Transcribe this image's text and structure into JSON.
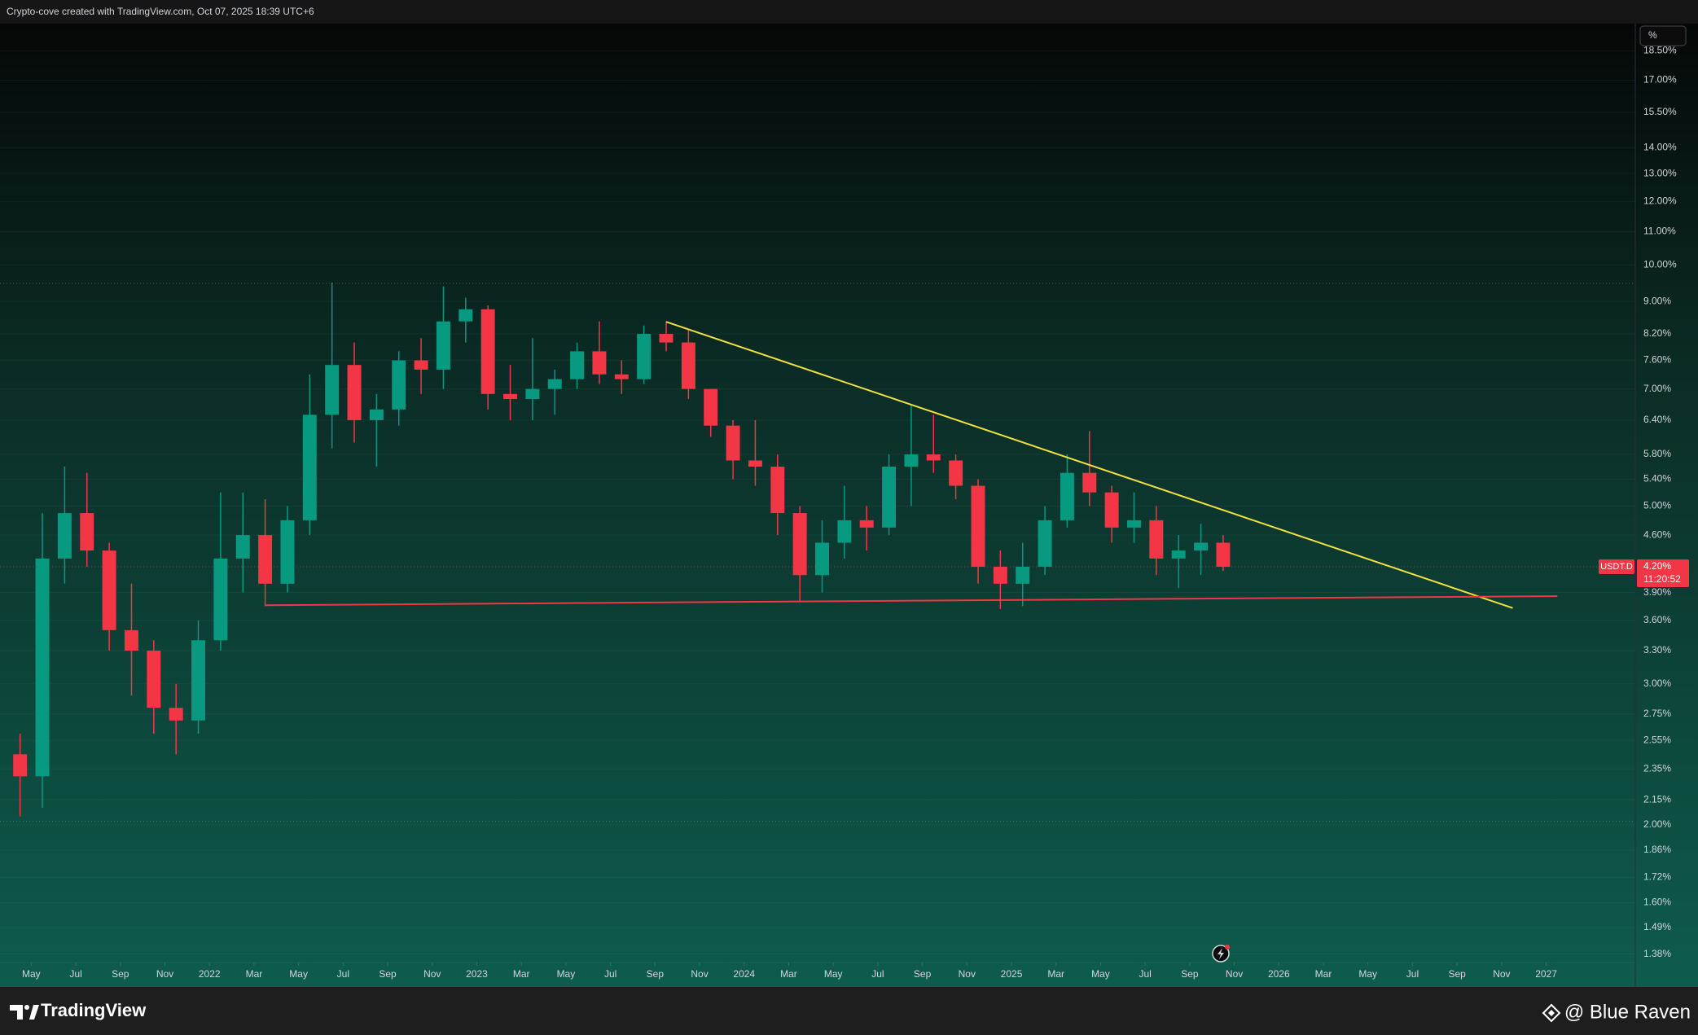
{
  "header": {
    "caption": "Crypto-cove created with TradingView.com, Oct 07, 2025 18:39 UTC+6"
  },
  "footer": {
    "brand": "TradingView",
    "author": "@ Blue Raven"
  },
  "toolbar": {
    "scale_button": "%"
  },
  "chart_data": {
    "type": "candlestick",
    "log_scale": true,
    "grid": true,
    "up_color": "#089981",
    "down_color": "#f23645",
    "x": [
      "2021-04",
      "2021-05",
      "2021-06",
      "2021-07",
      "2021-08",
      "2021-09",
      "2021-10",
      "2021-11",
      "2021-12",
      "2022-01",
      "2022-02",
      "2022-03",
      "2022-04",
      "2022-05",
      "2022-06",
      "2022-07",
      "2022-08",
      "2022-09",
      "2022-10",
      "2022-11",
      "2022-12",
      "2023-01",
      "2023-02",
      "2023-03",
      "2023-04",
      "2023-05",
      "2023-06",
      "2023-07",
      "2023-08",
      "2023-09",
      "2023-10",
      "2023-11",
      "2023-12",
      "2024-01",
      "2024-02",
      "2024-03",
      "2024-04",
      "2024-05",
      "2024-06",
      "2024-07",
      "2024-08",
      "2024-09",
      "2024-10",
      "2024-11",
      "2024-12",
      "2025-01",
      "2025-02",
      "2025-03",
      "2025-04",
      "2025-05",
      "2025-06",
      "2025-07",
      "2025-08",
      "2025-09",
      "2025-10"
    ],
    "open": [
      2.45,
      2.3,
      4.3,
      4.9,
      4.4,
      3.5,
      3.3,
      2.8,
      2.7,
      3.4,
      4.3,
      4.6,
      4.0,
      4.8,
      6.5,
      7.5,
      6.4,
      6.6,
      7.6,
      7.4,
      8.5,
      8.8,
      6.9,
      6.8,
      7.0,
      7.2,
      7.8,
      7.3,
      7.2,
      8.2,
      8.0,
      7.0,
      6.3,
      5.7,
      5.6,
      4.9,
      4.1,
      4.5,
      4.8,
      4.7,
      5.6,
      5.8,
      5.7,
      5.3,
      4.2,
      4.0,
      4.2,
      4.8,
      5.5,
      5.2,
      4.7,
      4.8,
      4.3,
      4.4,
      4.5
    ],
    "high": [
      2.6,
      4.9,
      5.6,
      5.5,
      4.5,
      4.0,
      3.4,
      3.0,
      3.6,
      5.2,
      5.2,
      5.1,
      5.0,
      7.3,
      9.5,
      8.0,
      6.9,
      7.8,
      8.1,
      9.4,
      9.1,
      8.9,
      7.5,
      8.1,
      7.4,
      8.0,
      8.5,
      7.6,
      8.4,
      8.5,
      8.3,
      7.0,
      6.4,
      6.4,
      5.8,
      5.0,
      4.8,
      5.3,
      5.0,
      5.8,
      6.7,
      6.5,
      5.8,
      5.4,
      4.4,
      4.5,
      5.0,
      5.8,
      6.2,
      5.3,
      5.2,
      5.0,
      4.6,
      4.75,
      4.6
    ],
    "low": [
      2.05,
      2.1,
      4.0,
      4.2,
      3.3,
      2.9,
      2.6,
      2.45,
      2.6,
      3.3,
      3.9,
      3.75,
      3.9,
      4.6,
      5.9,
      6.0,
      5.6,
      6.3,
      6.9,
      7.0,
      8.0,
      6.6,
      6.4,
      6.4,
      6.5,
      7.0,
      7.1,
      6.9,
      7.1,
      7.8,
      6.8,
      6.1,
      5.4,
      5.3,
      4.6,
      3.8,
      3.9,
      4.3,
      4.4,
      4.6,
      5.0,
      5.5,
      5.1,
      4.0,
      3.72,
      3.75,
      4.1,
      4.7,
      5.0,
      4.5,
      4.5,
      4.1,
      3.95,
      4.1,
      4.15
    ],
    "close": [
      2.3,
      4.3,
      4.9,
      4.4,
      3.5,
      3.3,
      2.8,
      2.7,
      3.4,
      4.3,
      4.6,
      4.0,
      4.8,
      6.5,
      7.5,
      6.4,
      6.6,
      7.6,
      7.4,
      8.5,
      8.8,
      6.9,
      6.8,
      7.0,
      7.2,
      7.8,
      7.3,
      7.2,
      8.2,
      8.0,
      7.0,
      6.3,
      5.7,
      5.6,
      4.9,
      4.1,
      4.5,
      4.8,
      4.7,
      5.6,
      5.8,
      5.7,
      5.3,
      4.2,
      4.0,
      4.2,
      4.8,
      5.5,
      5.2,
      4.7,
      4.8,
      4.3,
      4.4,
      4.5,
      4.2
    ],
    "xlim": [
      "2021-04",
      "2027-05"
    ],
    "ylim": [
      1.35,
      20
    ],
    "xticks": [
      {
        "value": "2021-05",
        "label": "May"
      },
      {
        "value": "2021-07",
        "label": "Jul"
      },
      {
        "value": "2021-09",
        "label": "Sep"
      },
      {
        "value": "2021-11",
        "label": "Nov"
      },
      {
        "value": "2022-01",
        "label": "2022"
      },
      {
        "value": "2022-03",
        "label": "Mar"
      },
      {
        "value": "2022-05",
        "label": "May"
      },
      {
        "value": "2022-07",
        "label": "Jul"
      },
      {
        "value": "2022-09",
        "label": "Sep"
      },
      {
        "value": "2022-11",
        "label": "Nov"
      },
      {
        "value": "2023-01",
        "label": "2023"
      },
      {
        "value": "2023-03",
        "label": "Mar"
      },
      {
        "value": "2023-05",
        "label": "May"
      },
      {
        "value": "2023-07",
        "label": "Jul"
      },
      {
        "value": "2023-09",
        "label": "Sep"
      },
      {
        "value": "2023-11",
        "label": "Nov"
      },
      {
        "value": "2024-01",
        "label": "2024"
      },
      {
        "value": "2024-03",
        "label": "Mar"
      },
      {
        "value": "2024-05",
        "label": "May"
      },
      {
        "value": "2024-07",
        "label": "Jul"
      },
      {
        "value": "2024-09",
        "label": "Sep"
      },
      {
        "value": "2024-11",
        "label": "Nov"
      },
      {
        "value": "2025-01",
        "label": "2025"
      },
      {
        "value": "2025-03",
        "label": "Mar"
      },
      {
        "value": "2025-05",
        "label": "May"
      },
      {
        "value": "2025-07",
        "label": "Jul"
      },
      {
        "value": "2025-09",
        "label": "Sep"
      },
      {
        "value": "2025-11",
        "label": "Nov"
      },
      {
        "value": "2026-01",
        "label": "2026"
      },
      {
        "value": "2026-03",
        "label": "Mar"
      },
      {
        "value": "2026-05",
        "label": "May"
      },
      {
        "value": "2026-07",
        "label": "Jul"
      },
      {
        "value": "2026-09",
        "label": "Sep"
      },
      {
        "value": "2026-11",
        "label": "Nov"
      },
      {
        "value": "2027-01",
        "label": "2027"
      }
    ],
    "yticks": [
      {
        "value": 1.38,
        "label": "1.38%"
      },
      {
        "value": 1.49,
        "label": "1.49%"
      },
      {
        "value": 1.6,
        "label": "1.60%"
      },
      {
        "value": 1.72,
        "label": "1.72%"
      },
      {
        "value": 1.86,
        "label": "1.86%"
      },
      {
        "value": 2,
        "label": "2.00%"
      },
      {
        "value": 2.15,
        "label": "2.15%"
      },
      {
        "value": 2.35,
        "label": "2.35%"
      },
      {
        "value": 2.55,
        "label": "2.55%"
      },
      {
        "value": 2.75,
        "label": "2.75%"
      },
      {
        "value": 3,
        "label": "3.00%"
      },
      {
        "value": 3.3,
        "label": "3.30%"
      },
      {
        "value": 3.6,
        "label": "3.60%"
      },
      {
        "value": 3.9,
        "label": "3.90%"
      },
      {
        "value": 4.6,
        "label": "4.60%"
      },
      {
        "value": 5,
        "label": "5.00%"
      },
      {
        "value": 5.4,
        "label": "5.40%"
      },
      {
        "value": 5.8,
        "label": "5.80%"
      },
      {
        "value": 6.4,
        "label": "6.40%"
      },
      {
        "value": 7,
        "label": "7.00%"
      },
      {
        "value": 7.6,
        "label": "7.60%"
      },
      {
        "value": 8.2,
        "label": "8.20%"
      },
      {
        "value": 9,
        "label": "9.00%"
      },
      {
        "value": 10,
        "label": "10.00%"
      },
      {
        "value": 11,
        "label": "11.00%"
      },
      {
        "value": 12,
        "label": "12.00%"
      },
      {
        "value": 13,
        "label": "13.00%"
      },
      {
        "value": 14,
        "label": "14.00%"
      },
      {
        "value": 15.5,
        "label": "15.50%"
      },
      {
        "value": 17,
        "label": "17.00%"
      },
      {
        "value": 18.5,
        "label": "18.50%"
      }
    ],
    "lines": [
      {
        "color": "#f0e040",
        "x": [
          "2023-09",
          "2026-11"
        ],
        "y": [
          8.49,
          3.73
        ]
      },
      {
        "color": "#f23645",
        "x": [
          "2022-03",
          "2027-01"
        ],
        "y": [
          3.76,
          3.86
        ]
      }
    ],
    "levels": [
      9.48,
      2.02
    ],
    "last_price": {
      "symbol": "USDT.D",
      "value": 4.2,
      "label": "4.20%",
      "countdown": "11:20:52"
    }
  }
}
